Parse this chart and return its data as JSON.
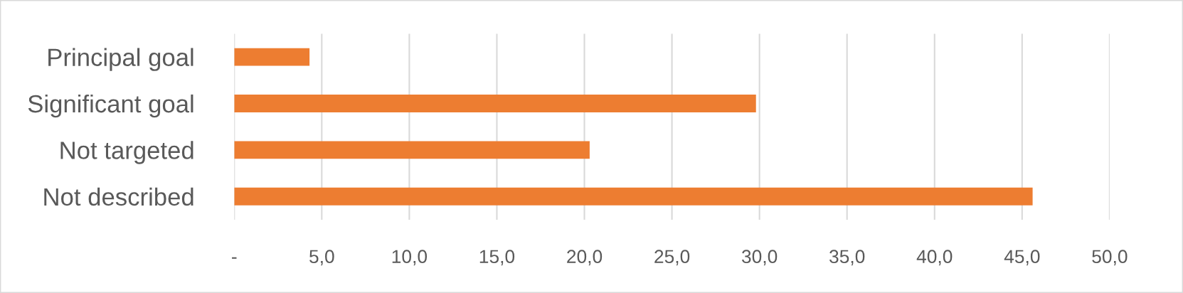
{
  "chart_data": {
    "type": "bar",
    "orientation": "horizontal",
    "categories": [
      "Principal goal",
      "Significant goal",
      "Not targeted",
      "Not described"
    ],
    "values": [
      4.3,
      29.8,
      20.3,
      45.6
    ],
    "color": "#ed7d31",
    "xlim": [
      0,
      50
    ],
    "xticks": [
      {
        "value": 0,
        "label": "-"
      },
      {
        "value": 5,
        "label": "5,0"
      },
      {
        "value": 10,
        "label": "10,0"
      },
      {
        "value": 15,
        "label": "15,0"
      },
      {
        "value": 20,
        "label": "20,0"
      },
      {
        "value": 25,
        "label": "25,0"
      },
      {
        "value": 30,
        "label": "30,0"
      },
      {
        "value": 35,
        "label": "35,0"
      },
      {
        "value": 40,
        "label": "40,0"
      },
      {
        "value": 45,
        "label": "45,0"
      },
      {
        "value": 50,
        "label": "50,0"
      }
    ],
    "grid": "x",
    "legend": false
  }
}
